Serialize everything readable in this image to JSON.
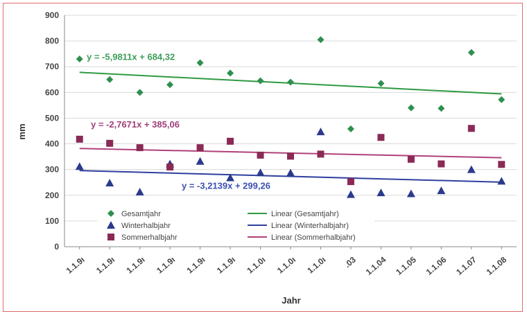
{
  "chart_data": {
    "type": "scatter",
    "xlabel": "Jahr",
    "ylabel": "mm",
    "ylim": [
      0,
      900
    ],
    "yticks": [
      0,
      100,
      200,
      300,
      400,
      500,
      600,
      700,
      800,
      900
    ],
    "grid": true,
    "x_ticks": [
      "1.1.9ı",
      "1.1.9ı",
      "1.1.9ı",
      "1.1.9ı",
      "1.1.9ı",
      "1.1.9ı",
      "1.1.0ı",
      "1.1.0ı",
      "1.1.0ı",
      ".03",
      "1.1.04",
      "1.1.05",
      "1.1.06",
      "1.1.07",
      "1.1.08"
    ],
    "series": [
      {
        "name": "Gesamtjahr",
        "marker": "diamond",
        "color": "#2f8f4f",
        "values": [
          730,
          650,
          600,
          630,
          715,
          675,
          645,
          640,
          805,
          458,
          635,
          540,
          538,
          755,
          572
        ]
      },
      {
        "name": "Winterhalbjahr",
        "marker": "triangle",
        "color": "#2b3a8c",
        "values": [
          312,
          248,
          213,
          322,
          332,
          268,
          288,
          287,
          447,
          203,
          210,
          206,
          218,
          300,
          255
        ]
      },
      {
        "name": "Sommerhalbjahr",
        "marker": "square",
        "color": "#8a2a55",
        "values": [
          418,
          402,
          385,
          310,
          385,
          410,
          356,
          352,
          360,
          253,
          425,
          340,
          322,
          460,
          320
        ]
      }
    ],
    "trendlines": [
      {
        "name": "Linear (Gesamtjahr)",
        "color": "#2e9a43",
        "start": 678,
        "end": 594,
        "equation": "y = -5,9811x + 684,32",
        "equation_color": "#3c9e58"
      },
      {
        "name": "Linear (Winterhalbjahr)",
        "color": "#2f3fa0",
        "start": 296,
        "end": 251,
        "equation": "y = -3,2139x + 299,26",
        "equation_color": "#3b4fb0"
      },
      {
        "name": "Linear (Sommerhalbjahr)",
        "color": "#b0407a",
        "start": 382,
        "end": 346,
        "equation": "y = -2,7671x + 385,06",
        "equation_color": "#a0407a"
      }
    ],
    "legend": {
      "placement": "bottom-left",
      "items": [
        "Gesamtjahr",
        "Linear (Gesamtjahr)",
        "Winterhalbjahr",
        "Linear (Winterhalbjahr)",
        "Sommerhalbjahr",
        "Linear (Sommerhalbjahr)"
      ]
    }
  }
}
